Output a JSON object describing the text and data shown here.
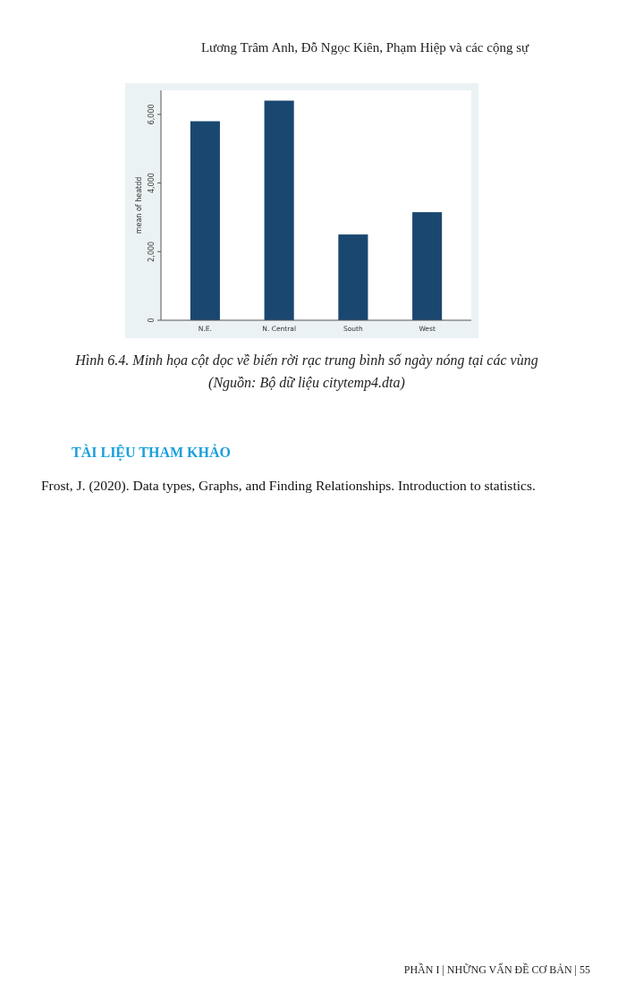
{
  "chart_data": {
    "type": "bar",
    "ylabel": "mean of heatdd",
    "categories": [
      "N.E.",
      "N. Central",
      "South",
      "West"
    ],
    "values": [
      5800,
      6400,
      2500,
      3150
    ],
    "color": "#1a4770",
    "ylim": [
      0,
      6700
    ],
    "yticks": [
      0,
      {
        "value": 2000,
        "label": "2,000"
      },
      {
        "value": 4000,
        "label": "4,000"
      },
      {
        "value": 6000,
        "label": "6,000"
      }
    ],
    "grid": false,
    "annotations": [
      "Lương Trâm Anh, Đỗ Ngọc Kiên, Phạm Hiệp và các cộng sự",
      "Hình 6.4. Minh họa cột dọc về biến rời rạc trung bình số ngày nóng tại các vùng (Nguồn: Bộ dữ liệu citytemp4.dta)",
      "TÀI LIỆU THAM KHẢO",
      "Frost, J. (2020). Data types, Graphs, and Finding Relationships. Introduction to statistics.",
      "PHẦN I | NHỮNG VẤN ĐỀ CƠ BẢN | 55"
    ]
  }
}
